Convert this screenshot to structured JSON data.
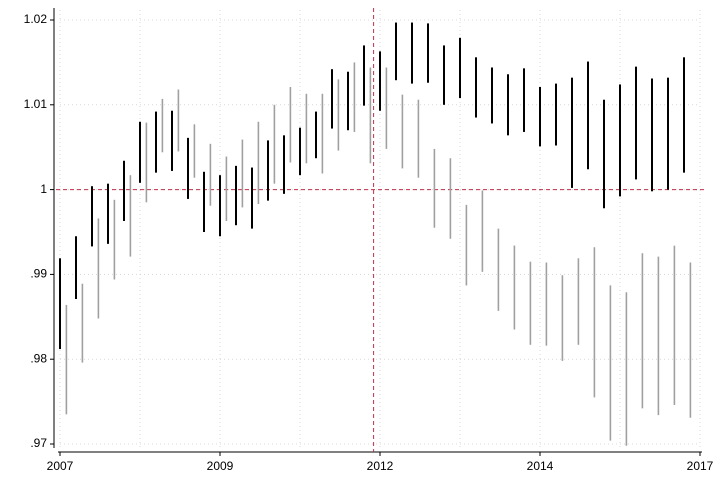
{
  "chart_data": {
    "type": "range",
    "xlim": [
      2007,
      2017
    ],
    "xticks": [
      2007,
      {
        "value": 2009.5,
        "label": "2009"
      },
      2012,
      {
        "value": 2014.5,
        "label": "2014"
      },
      2017
    ],
    "xgrid": [
      2008.25,
      2010.75,
      2013.25,
      2015.75
    ],
    "ylim": [
      0.97,
      1.02
    ],
    "yticks": [
      {
        "value": 0.97,
        "label": ".97"
      },
      {
        "value": 0.98,
        "label": ".98"
      },
      {
        "value": 0.99,
        "label": ".99"
      },
      1,
      1.01,
      1.02
    ],
    "grid": true,
    "xline": 2011.9,
    "yline": 1,
    "refline_color": "#c0304a",
    "series": [
      {
        "color": "#000000",
        "x": [
          2007,
          2007.25,
          2007.5,
          2007.75,
          2008,
          2008.25,
          2008.5,
          2008.75,
          2009,
          2009.25,
          2009.5,
          2009.75,
          2010,
          2010.25,
          2010.5,
          2010.75,
          2011,
          2011.25,
          2011.5,
          2011.75,
          2012,
          2012.25,
          2012.5,
          2012.75,
          2013,
          2013.25,
          2013.5,
          2013.75,
          2014,
          2014.25,
          2014.5,
          2014.75,
          2015,
          2015.25,
          2015.5,
          2015.75,
          2016,
          2016.25,
          2016.5,
          2016.75
        ],
        "low": [
          0.9812,
          0.9871,
          0.9933,
          0.9936,
          0.9963,
          1.0008,
          1.002,
          1.0022,
          0.9989,
          0.995,
          0.9945,
          0.9958,
          0.9954,
          0.9987,
          0.9995,
          1.0017,
          1.0037,
          1.0072,
          1.007,
          1.0099,
          1.0093,
          1.0129,
          1.0125,
          1.0126,
          1.01,
          1.0108,
          1.0085,
          1.0078,
          1.0064,
          1.0068,
          1.0051,
          1.0052,
          1.0002,
          1.0024,
          0.9978,
          0.9992,
          1.0012,
          0.9998,
          1.0,
          1.002
        ],
        "high": [
          0.9919,
          0.9945,
          1.0004,
          1.0007,
          1.0034,
          1.008,
          1.0092,
          1.0093,
          1.0061,
          1.0021,
          1.0017,
          1.0028,
          1.0026,
          1.0058,
          1.0064,
          1.0073,
          1.0092,
          1.0142,
          1.0139,
          1.017,
          1.0163,
          1.0197,
          1.0197,
          1.0196,
          1.017,
          1.0179,
          1.0156,
          1.0144,
          1.0136,
          1.0143,
          1.0121,
          1.0125,
          1.0132,
          1.0151,
          1.0106,
          1.0124,
          1.0145,
          1.0131,
          1.0132,
          1.0156
        ]
      },
      {
        "color": "#a0a0a0",
        "x": [
          2007.1,
          2007.35,
          2007.6,
          2007.85,
          2008.1,
          2008.35,
          2008.6,
          2008.85,
          2009.1,
          2009.35,
          2009.6,
          2009.85,
          2010.1,
          2010.35,
          2010.6,
          2010.85,
          2011.1,
          2011.35,
          2011.6,
          2011.85,
          2012.1,
          2012.35,
          2012.6,
          2012.85,
          2013.1,
          2013.35,
          2013.6,
          2013.85,
          2014.1,
          2014.35,
          2014.6,
          2014.85,
          2015.1,
          2015.35,
          2015.6,
          2015.85,
          2016.1,
          2016.35,
          2016.6,
          2016.85
        ],
        "low": [
          0.9735,
          0.9796,
          0.9848,
          0.9894,
          0.9921,
          0.9985,
          1.0044,
          1.0045,
          1.0014,
          0.9981,
          0.9963,
          0.9979,
          0.9983,
          1.0007,
          1.0032,
          1.0031,
          1.0019,
          1.0046,
          1.0068,
          1.0031,
          1.0048,
          1.0025,
          1.0014,
          0.9955,
          0.9942,
          0.9887,
          0.9903,
          0.9857,
          0.9835,
          0.9817,
          0.9816,
          0.9798,
          0.9817,
          0.9755,
          0.9704,
          0.9698,
          0.9742,
          0.9734,
          0.9746,
          0.9731
        ],
        "high": [
          0.9864,
          0.9889,
          0.9966,
          0.9988,
          1.0017,
          1.0079,
          1.0107,
          1.0118,
          1.0077,
          1.0054,
          1.0039,
          1.0059,
          1.008,
          1.01,
          1.0121,
          1.0113,
          1.0113,
          1.013,
          1.015,
          1.0144,
          1.0144,
          1.0112,
          1.0106,
          1.0048,
          1.0037,
          0.9982,
          0.9999,
          0.9954,
          0.9934,
          0.9915,
          0.9914,
          0.9899,
          0.9919,
          0.9932,
          0.9887,
          0.9879,
          0.9925,
          0.9921,
          0.9934,
          0.9914
        ]
      }
    ]
  }
}
